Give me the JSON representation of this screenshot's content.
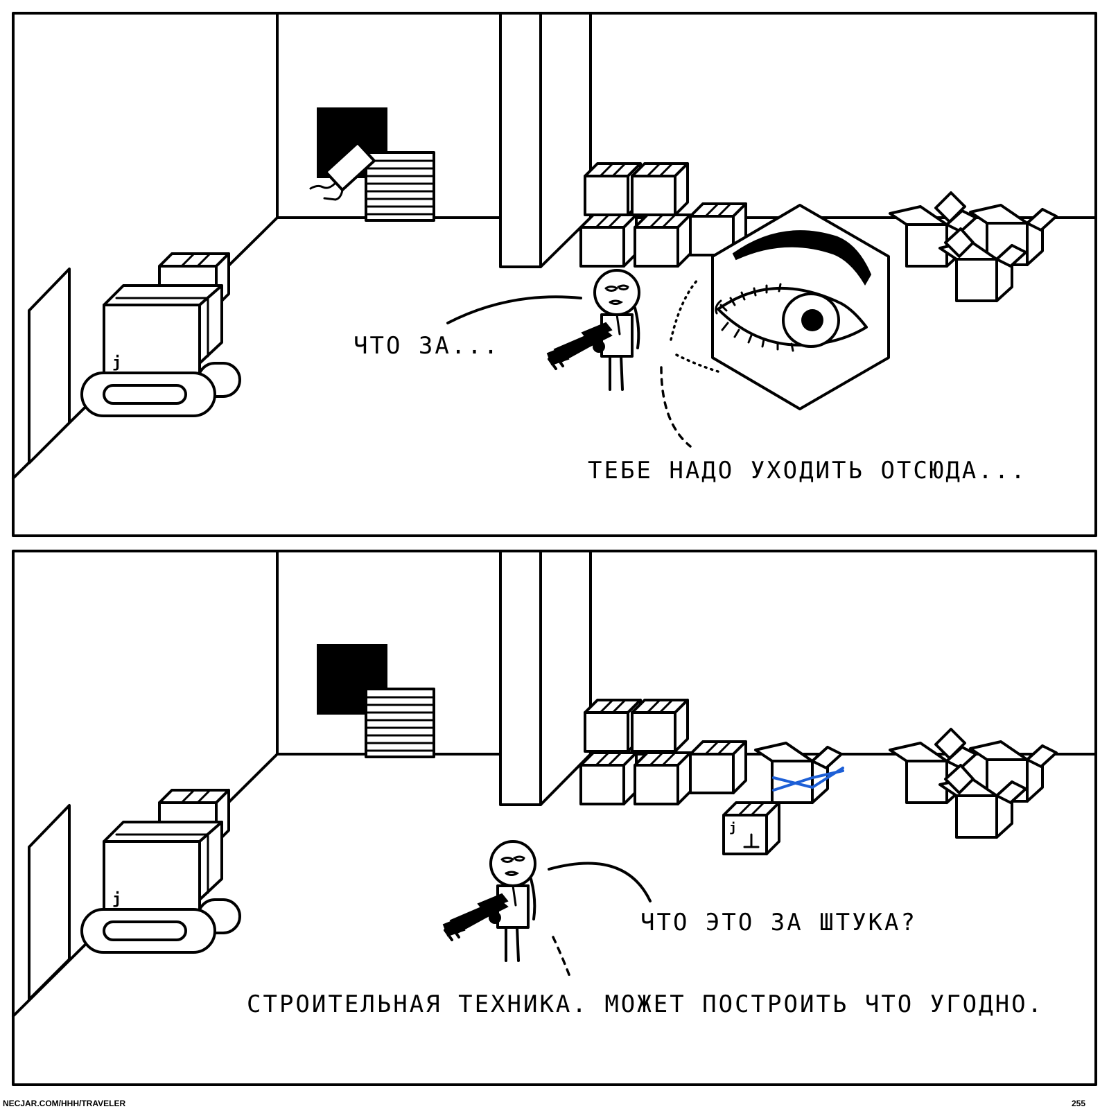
{
  "panels": [
    {
      "lines": {
        "what": "ЧТО ЗА...",
        "leave": "ТЕБЕ НАДО УХОДИТЬ ОТСЮДА..."
      }
    },
    {
      "lines": {
        "question": "ЧТО ЭТО ЗА ШТУКА?",
        "answer": "СТРОИТЕЛЬНАЯ ТЕХНИКА. МОЖЕТ ПОСТРОИТЬ ЧТО УГОДНО."
      }
    }
  ],
  "footer": {
    "url": "NECJAR.COM/HHH/TRAVELER",
    "page_number": "255"
  },
  "colors": {
    "ink": "#000000",
    "paper": "#ffffff",
    "blue_accent": "#1d5fd6"
  }
}
